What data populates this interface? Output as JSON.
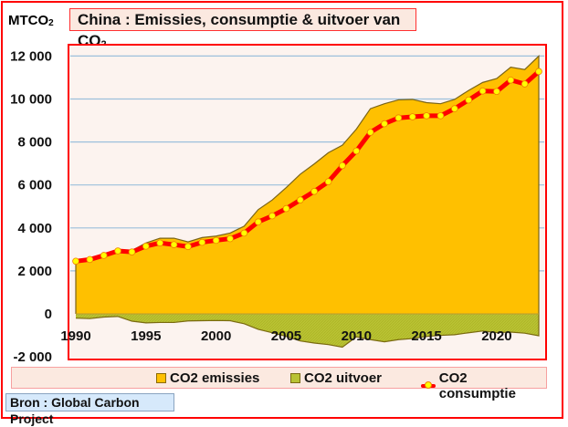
{
  "unit_label": "MTCO",
  "unit_subscript": "2",
  "title": "China : Emissies, consumptie & uitvoer van CO",
  "title_subscript": "2",
  "source": "Bron : Global Carbon Project",
  "colors": {
    "emissions_fill": "#ffc000",
    "emissions_stroke": "#7a6418",
    "exports_fill": "#b9c233",
    "consumption_line": "#ff0000",
    "consumption_marker": "#ffff00",
    "plot_bg": "#fcf3ef",
    "plot_border": "#ff0000",
    "grid": "#9cc0dc"
  },
  "legend": [
    {
      "label": "CO2 emissies",
      "key": "emissions"
    },
    {
      "label": "CO2 uitvoer",
      "key": "exports"
    },
    {
      "label": "CO2 consumptie",
      "key": "consumption"
    }
  ],
  "chart_data": {
    "type": "area",
    "title": "China : Emissies, consumptie & uitvoer van CO2",
    "xlabel": "",
    "ylabel": "MTCO2",
    "ylim": [
      -2000,
      12000
    ],
    "xlim": [
      1990,
      2023
    ],
    "yticks": [
      -2000,
      0,
      2000,
      4000,
      6000,
      8000,
      10000,
      12000
    ],
    "ytick_labels": [
      "-2 000",
      "0",
      "2 000",
      "4 000",
      "6 000",
      "8 000",
      "10 000",
      "12 000"
    ],
    "xticks": [
      1990,
      1995,
      2000,
      2005,
      2010,
      2015,
      2020
    ],
    "xtick_labels": [
      "1990",
      "1995",
      "2000",
      "2005",
      "2010",
      "2015",
      "2020"
    ],
    "grid": true,
    "legend_position": "bottom",
    "x": [
      1990,
      1991,
      1992,
      1993,
      1994,
      1995,
      1996,
      1997,
      1998,
      1999,
      2000,
      2001,
      2002,
      2003,
      2004,
      2005,
      2006,
      2007,
      2008,
      2009,
      2010,
      2011,
      2012,
      2013,
      2014,
      2015,
      2016,
      2017,
      2018,
      2019,
      2020,
      2021,
      2022,
      2023
    ],
    "series": [
      {
        "name": "CO2 emissies",
        "kind": "area",
        "values": [
          2480,
          2580,
          2720,
          2950,
          2950,
          3300,
          3520,
          3520,
          3350,
          3550,
          3620,
          3760,
          4080,
          4850,
          5300,
          5880,
          6500,
          6980,
          7500,
          7850,
          8600,
          9550,
          9780,
          9960,
          9980,
          9830,
          9780,
          9980,
          10400,
          10770,
          10950,
          11480,
          11370,
          12000
        ]
      },
      {
        "name": "CO2 uitvoer",
        "kind": "area",
        "values": [
          -200,
          -220,
          -150,
          -120,
          -340,
          -420,
          -400,
          -400,
          -330,
          -320,
          -310,
          -320,
          -460,
          -720,
          -880,
          -1050,
          -1260,
          -1360,
          -1430,
          -1550,
          -1070,
          -1200,
          -1300,
          -1200,
          -1150,
          -1050,
          -1000,
          -970,
          -880,
          -800,
          -870,
          -850,
          -900,
          -1020
        ]
      },
      {
        "name": "CO2 consumptie",
        "kind": "line",
        "values": [
          2450,
          2530,
          2720,
          2930,
          2880,
          3150,
          3300,
          3220,
          3130,
          3330,
          3420,
          3500,
          3760,
          4280,
          4560,
          4900,
          5300,
          5700,
          6150,
          6900,
          7580,
          8450,
          8850,
          9120,
          9170,
          9220,
          9220,
          9550,
          9950,
          10370,
          10350,
          10880,
          10700,
          11280
        ]
      }
    ]
  }
}
